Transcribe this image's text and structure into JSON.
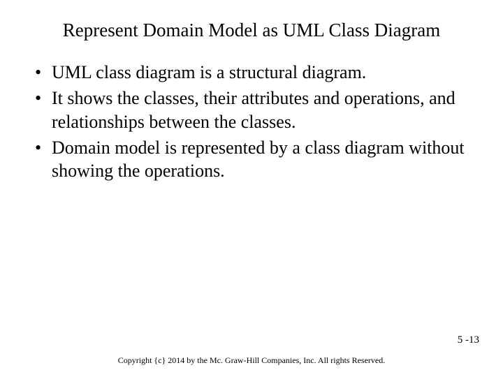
{
  "title": "Represent Domain Model as UML Class Diagram",
  "bullets": [
    "UML class diagram is a structural diagram.",
    "It shows the classes, their attributes and operations, and relationships between the classes.",
    "Domain model is represented by a class diagram without showing the operations."
  ],
  "page_number": "5 -13",
  "copyright": "Copyright {c} 2014 by the Mc. Graw-Hill Companies, Inc. All rights Reserved.",
  "styling": {
    "background_color": "#ffffff",
    "text_color": "#000000",
    "title_fontsize": 27,
    "body_fontsize": 26,
    "page_number_fontsize": 15,
    "copyright_fontsize": 12,
    "font_family": "Times New Roman"
  }
}
